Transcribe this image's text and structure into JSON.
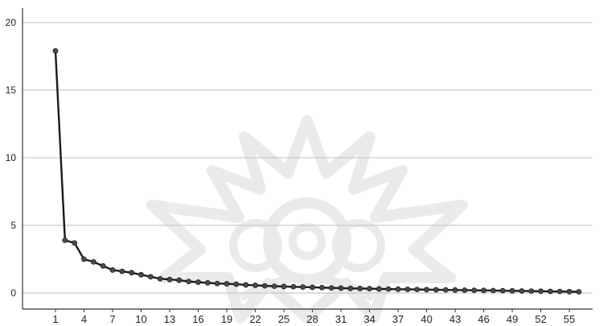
{
  "chart_data": {
    "type": "line",
    "title": "",
    "xlabel": "",
    "ylabel": "",
    "xlim": [
      1,
      56
    ],
    "ylim": [
      0,
      20
    ],
    "x_ticks": [
      1,
      4,
      7,
      10,
      13,
      16,
      19,
      22,
      25,
      28,
      31,
      34,
      37,
      40,
      43,
      46,
      49,
      52,
      55
    ],
    "y_ticks": [
      0,
      5,
      10,
      15,
      20
    ],
    "grid": "horizontal",
    "legend": "none",
    "series": [
      {
        "x": [
          1,
          2,
          3,
          4,
          5,
          6,
          7,
          8,
          9,
          10,
          11,
          12,
          13,
          14,
          15,
          16,
          17,
          18,
          19,
          20,
          21,
          22,
          23,
          24,
          25,
          26,
          27,
          28,
          29,
          30,
          31,
          32,
          33,
          34,
          35,
          36,
          37,
          38,
          39,
          40,
          41,
          42,
          43,
          44,
          45,
          46,
          47,
          48,
          49,
          50,
          51,
          52,
          53,
          54,
          55,
          56
        ],
        "values": [
          17.9,
          3.9,
          3.7,
          2.5,
          2.3,
          2.0,
          1.7,
          1.6,
          1.5,
          1.35,
          1.2,
          1.05,
          1.0,
          0.95,
          0.85,
          0.8,
          0.75,
          0.7,
          0.68,
          0.65,
          0.6,
          0.57,
          0.53,
          0.5,
          0.48,
          0.46,
          0.44,
          0.42,
          0.4,
          0.38,
          0.36,
          0.34,
          0.33,
          0.32,
          0.3,
          0.29,
          0.28,
          0.27,
          0.26,
          0.25,
          0.24,
          0.23,
          0.22,
          0.21,
          0.2,
          0.19,
          0.18,
          0.17,
          0.16,
          0.15,
          0.14,
          0.13,
          0.12,
          0.11,
          0.1,
          0.09
        ]
      }
    ],
    "colors": {
      "line": "#1a1a1a",
      "marker": "#4a4a4a",
      "grid": "#bdbdbd",
      "axis": "#333333"
    }
  }
}
